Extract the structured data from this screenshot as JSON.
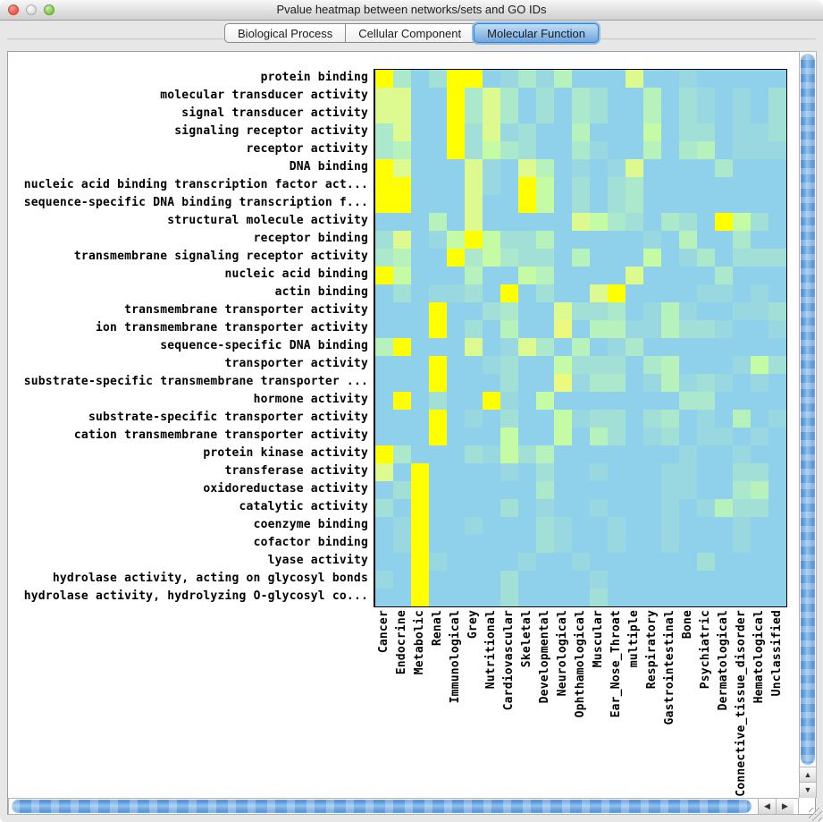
{
  "window": {
    "title": "Pvalue heatmap between networks/sets and GO IDs"
  },
  "tabs": [
    {
      "label": "Biological Process",
      "selected": false
    },
    {
      "label": "Cellular Component",
      "selected": false
    },
    {
      "label": "Molecular Function",
      "selected": true
    }
  ],
  "icons": {
    "scroll_up": "▲",
    "scroll_down": "▼",
    "scroll_left": "◀",
    "scroll_right": "▶"
  },
  "colors": {
    "selected_tab_ring": "#4E96D7",
    "scrollbar_blue": "#4A86CE",
    "heatmap_base_blue": "#8FD1EA",
    "heatmap_max_yellow": "#FFFF00"
  },
  "chart_data": {
    "type": "heatmap",
    "title": "Pvalue heatmap between networks/sets and GO IDs",
    "legend_position": "none",
    "value_legend": "palette index: 0 = light blue (least significant) … 8 = bright yellow (most significant)",
    "rows": [
      "protein binding",
      "molecular transducer activity",
      "signal transducer activity",
      "signaling receptor activity",
      "receptor activity",
      "DNA binding",
      "nucleic acid binding transcription factor act...",
      "sequence-specific DNA binding transcription f...",
      "structural molecule activity",
      "receptor binding",
      "transmembrane signaling receptor activity",
      "nucleic acid binding",
      "actin binding",
      "transmembrane transporter activity",
      "ion transmembrane transporter activity",
      "sequence-specific DNA binding",
      "transporter activity",
      "substrate-specific transmembrane transporter ...",
      "hormone activity",
      "substrate-specific transporter activity",
      "cation transmembrane transporter activity",
      "protein kinase activity",
      "transferase activity",
      "oxidoreductase activity",
      "catalytic activity",
      "coenzyme binding",
      "cofactor binding",
      "lyase activity",
      "hydrolase activity, acting on glycosyl bonds",
      "hydrolase activity, hydrolyzing O-glycosyl co..."
    ],
    "columns": [
      "Cancer",
      "Endocrine",
      "Metabolic",
      "Renal",
      "Immunological",
      "Grey",
      "Nutritional",
      "Cardiovascular",
      "Skeletal",
      "Developmental",
      "Neurological",
      "Ophthamological",
      "Muscular",
      "Ear_Nose_Throat",
      "multiple",
      "Respiratory",
      "Gastrointestinal",
      "Bone",
      "Psychiatric",
      "Dermatological",
      "Connective_tissue_disorder",
      "Hematological",
      "Unclassified"
    ],
    "palette": [
      "#8FD1EA",
      "#9AD8E1",
      "#A2E0D7",
      "#ACE8CB",
      "#B7F2BD",
      "#C6FBA6",
      "#DCFA90",
      "#EBF97F",
      "#FFFF00"
    ],
    "values": [
      [
        8,
        3,
        0,
        2,
        8,
        8,
        0,
        1,
        3,
        1,
        4,
        0,
        0,
        0,
        6,
        0,
        0,
        1,
        0,
        0,
        0,
        0,
        0
      ],
      [
        6,
        6,
        0,
        0,
        8,
        3,
        6,
        3,
        0,
        2,
        0,
        3,
        2,
        0,
        0,
        4,
        0,
        2,
        1,
        0,
        1,
        0,
        2
      ],
      [
        6,
        6,
        0,
        0,
        8,
        3,
        6,
        3,
        0,
        2,
        0,
        3,
        2,
        0,
        0,
        4,
        0,
        2,
        1,
        0,
        1,
        0,
        2
      ],
      [
        3,
        6,
        0,
        0,
        8,
        2,
        6,
        1,
        2,
        0,
        0,
        4,
        0,
        0,
        0,
        5,
        0,
        2,
        2,
        0,
        1,
        1,
        2
      ],
      [
        3,
        4,
        0,
        0,
        8,
        2,
        5,
        3,
        2,
        0,
        0,
        3,
        1,
        0,
        0,
        4,
        0,
        3,
        4,
        0,
        1,
        1,
        1
      ],
      [
        8,
        6,
        0,
        0,
        0,
        6,
        1,
        0,
        6,
        4,
        0,
        1,
        0,
        1,
        6,
        0,
        0,
        0,
        0,
        3,
        0,
        0,
        0
      ],
      [
        8,
        8,
        0,
        0,
        0,
        6,
        1,
        0,
        8,
        5,
        0,
        2,
        0,
        2,
        3,
        0,
        0,
        0,
        0,
        0,
        0,
        0,
        0
      ],
      [
        8,
        8,
        0,
        0,
        0,
        6,
        0,
        0,
        8,
        5,
        0,
        2,
        0,
        2,
        3,
        0,
        0,
        0,
        0,
        0,
        0,
        0,
        0
      ],
      [
        0,
        0,
        0,
        4,
        0,
        6,
        0,
        0,
        0,
        0,
        0,
        6,
        5,
        3,
        2,
        0,
        3,
        2,
        0,
        8,
        5,
        2,
        0
      ],
      [
        2,
        6,
        0,
        1,
        5,
        8,
        5,
        2,
        2,
        4,
        0,
        0,
        0,
        0,
        0,
        1,
        0,
        4,
        0,
        0,
        3,
        0,
        0
      ],
      [
        3,
        4,
        0,
        0,
        8,
        3,
        5,
        3,
        2,
        2,
        0,
        4,
        0,
        0,
        0,
        5,
        0,
        1,
        3,
        0,
        2,
        2,
        2
      ],
      [
        8,
        5,
        0,
        0,
        0,
        4,
        0,
        0,
        5,
        4,
        0,
        0,
        0,
        0,
        6,
        0,
        0,
        0,
        0,
        3,
        0,
        0,
        0
      ],
      [
        0,
        2,
        0,
        1,
        1,
        2,
        0,
        8,
        0,
        2,
        0,
        0,
        6,
        8,
        0,
        0,
        0,
        0,
        1,
        1,
        0,
        1,
        0
      ],
      [
        0,
        0,
        0,
        8,
        0,
        0,
        2,
        3,
        0,
        0,
        6,
        2,
        2,
        3,
        0,
        1,
        4,
        1,
        0,
        0,
        1,
        1,
        2
      ],
      [
        0,
        0,
        0,
        8,
        0,
        2,
        0,
        4,
        0,
        0,
        7,
        0,
        4,
        4,
        1,
        1,
        4,
        2,
        2,
        1,
        0,
        0,
        1
      ],
      [
        4,
        8,
        0,
        0,
        0,
        6,
        0,
        1,
        6,
        3,
        0,
        4,
        0,
        1,
        3,
        0,
        0,
        0,
        0,
        0,
        0,
        0,
        0
      ],
      [
        0,
        0,
        0,
        8,
        0,
        0,
        1,
        2,
        0,
        0,
        5,
        2,
        2,
        2,
        0,
        3,
        4,
        0,
        0,
        0,
        1,
        5,
        2
      ],
      [
        0,
        0,
        0,
        8,
        0,
        0,
        0,
        2,
        0,
        0,
        7,
        1,
        3,
        3,
        0,
        1,
        4,
        1,
        2,
        1,
        0,
        1,
        0
      ],
      [
        0,
        8,
        0,
        2,
        0,
        0,
        8,
        1,
        0,
        5,
        0,
        0,
        0,
        0,
        0,
        0,
        0,
        3,
        3,
        0,
        0,
        0,
        0
      ],
      [
        0,
        0,
        0,
        8,
        0,
        1,
        0,
        2,
        0,
        0,
        5,
        1,
        2,
        2,
        0,
        2,
        3,
        0,
        1,
        0,
        4,
        0,
        1
      ],
      [
        0,
        0,
        0,
        8,
        0,
        0,
        0,
        5,
        0,
        0,
        5,
        0,
        4,
        2,
        0,
        1,
        2,
        0,
        1,
        1,
        0,
        1,
        0
      ],
      [
        8,
        3,
        0,
        0,
        0,
        2,
        1,
        5,
        2,
        4,
        0,
        0,
        0,
        0,
        0,
        0,
        0,
        1,
        0,
        0,
        1,
        0,
        0
      ],
      [
        6,
        0,
        8,
        0,
        0,
        0,
        0,
        1,
        0,
        2,
        0,
        0,
        1,
        0,
        0,
        0,
        1,
        1,
        0,
        0,
        2,
        2,
        0
      ],
      [
        0,
        2,
        8,
        0,
        0,
        0,
        0,
        0,
        0,
        3,
        0,
        0,
        0,
        0,
        0,
        0,
        1,
        1,
        0,
        0,
        3,
        4,
        0
      ],
      [
        2,
        0,
        8,
        0,
        0,
        0,
        0,
        2,
        0,
        1,
        0,
        0,
        1,
        0,
        0,
        0,
        1,
        0,
        1,
        4,
        2,
        2,
        0
      ],
      [
        0,
        1,
        8,
        0,
        0,
        1,
        0,
        0,
        0,
        2,
        1,
        0,
        0,
        1,
        0,
        0,
        1,
        0,
        0,
        0,
        1,
        0,
        0
      ],
      [
        0,
        1,
        8,
        0,
        0,
        0,
        0,
        0,
        0,
        2,
        1,
        0,
        0,
        1,
        0,
        0,
        1,
        0,
        0,
        0,
        1,
        0,
        0
      ],
      [
        0,
        0,
        8,
        1,
        0,
        0,
        0,
        0,
        1,
        0,
        0,
        1,
        0,
        0,
        0,
        0,
        0,
        0,
        2,
        0,
        0,
        0,
        0
      ],
      [
        1,
        0,
        8,
        0,
        0,
        0,
        0,
        2,
        0,
        0,
        0,
        0,
        1,
        0,
        0,
        0,
        0,
        0,
        0,
        0,
        0,
        0,
        0
      ],
      [
        0,
        0,
        8,
        0,
        0,
        0,
        0,
        2,
        0,
        0,
        0,
        0,
        2,
        0,
        0,
        0,
        0,
        0,
        0,
        0,
        0,
        0,
        0
      ]
    ]
  }
}
